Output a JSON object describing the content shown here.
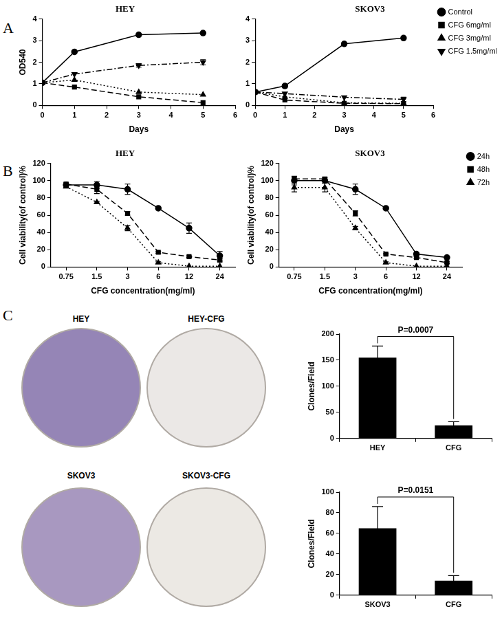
{
  "panels": [
    "A",
    "B",
    "C"
  ],
  "images": [
    {
      "label": "HEY",
      "color": "#9585b6"
    },
    {
      "label": "HEY-CFG",
      "color": "#ebe8e6"
    },
    {
      "label": "SKOV3",
      "color": "#a898c0"
    },
    {
      "label": "SKOV3-CFG",
      "color": "#ece9e4"
    }
  ],
  "chart_data": [
    {
      "type": "line",
      "title": "HEY",
      "x_label": "Days",
      "y_label": "OD540",
      "x": [
        0,
        1,
        3,
        5
      ],
      "xlim": [
        0,
        6
      ],
      "xticks": [
        0,
        1,
        2,
        3,
        4,
        5,
        6
      ],
      "ylim": [
        0,
        4
      ],
      "yticks": [
        0,
        1,
        2,
        3,
        4
      ],
      "grid": false,
      "legend": false,
      "series": [
        {
          "name": "Control",
          "color": "#000000",
          "marker": "circle",
          "line_style": "solid",
          "values": [
            1.05,
            2.48,
            3.27,
            3.35
          ],
          "errors": [
            null,
            null,
            null,
            null
          ]
        },
        {
          "name": "CFG 6mg/ml",
          "color": "#000000",
          "marker": "square",
          "line_style": "dashed",
          "values": [
            1.05,
            0.85,
            0.4,
            0.13
          ],
          "errors": [
            null,
            null,
            null,
            null
          ]
        },
        {
          "name": "CFG 3mg/ml",
          "color": "#000000",
          "marker": "triangle",
          "line_style": "dotted",
          "values": [
            1.05,
            1.18,
            0.62,
            0.5
          ],
          "errors": [
            null,
            null,
            null,
            null
          ]
        },
        {
          "name": "CFG 1.5mg/ml",
          "color": "#000000",
          "marker": "triangle-down",
          "line_style": "dashdot",
          "values": [
            1.05,
            1.45,
            1.85,
            2.0
          ],
          "errors": [
            null,
            null,
            0.08,
            0.12
          ]
        }
      ]
    },
    {
      "type": "line",
      "title": "SKOV3",
      "x_label": "Days",
      "x": [
        0,
        1,
        3,
        5
      ],
      "xlim": [
        0,
        6
      ],
      "xticks": [
        0,
        1,
        2,
        3,
        4,
        5,
        6
      ],
      "ylim": [
        0,
        4
      ],
      "yticks": [
        0,
        1,
        2,
        3,
        4
      ],
      "grid": false,
      "legend": "right",
      "series": [
        {
          "name": "Control",
          "color": "#000000",
          "marker": "circle",
          "line_style": "solid",
          "values": [
            0.62,
            0.9,
            2.85,
            3.12
          ],
          "errors": [
            null,
            0.08,
            null,
            null
          ]
        },
        {
          "name": "CFG 6mg/ml",
          "color": "#000000",
          "marker": "square",
          "line_style": "dashed",
          "values": [
            0.62,
            0.25,
            0.1,
            0.08
          ],
          "errors": [
            null,
            null,
            null,
            null
          ]
        },
        {
          "name": "CFG 3mg/ml",
          "color": "#000000",
          "marker": "triangle",
          "line_style": "dotted",
          "values": [
            0.62,
            0.4,
            0.12,
            0.1
          ],
          "errors": [
            null,
            null,
            null,
            null
          ]
        },
        {
          "name": "CFG 1.5mg/ml",
          "color": "#000000",
          "marker": "triangle-down",
          "line_style": "dashdot",
          "values": [
            0.62,
            0.55,
            0.38,
            0.28
          ],
          "errors": [
            null,
            null,
            null,
            0.1
          ]
        }
      ]
    },
    {
      "type": "line",
      "title": "HEY",
      "x_label": "CFG concentration(mg/ml)",
      "y_label": "Cell viability(of control)%",
      "categories": [
        "0.75",
        "1.5",
        "3",
        "6",
        "12",
        "24"
      ],
      "ylim": [
        0,
        120
      ],
      "yticks": [
        0,
        20,
        40,
        60,
        80,
        100,
        120
      ],
      "grid": false,
      "legend": false,
      "series": [
        {
          "name": "24h",
          "color": "#000000",
          "marker": "circle",
          "line_style": "solid",
          "values": [
            95,
            95,
            90,
            68,
            45,
            13
          ],
          "errors": [
            1,
            4,
            6,
            1,
            6,
            5
          ]
        },
        {
          "name": "48h",
          "color": "#000000",
          "marker": "square",
          "line_style": "dashed",
          "values": [
            96,
            90,
            62,
            17,
            12,
            8
          ],
          "errors": [
            2,
            5,
            2,
            1,
            1,
            2
          ]
        },
        {
          "name": "72h",
          "color": "#000000",
          "marker": "triangle",
          "line_style": "dotted",
          "values": [
            93,
            75,
            45,
            5,
            1,
            1
          ],
          "errors": [
            1,
            1,
            3,
            1,
            null,
            null
          ]
        }
      ]
    },
    {
      "type": "line",
      "title": "SKOV3",
      "x_label": "CFG concentration(mg/ml)",
      "y_label": "Cell viability(of control)%",
      "categories": [
        "0.75",
        "1.5",
        "3",
        "6",
        "12",
        "24"
      ],
      "ylim": [
        0,
        120
      ],
      "yticks": [
        0,
        20,
        40,
        60,
        80,
        100,
        120
      ],
      "grid": false,
      "legend": "right",
      "series": [
        {
          "name": "24h",
          "color": "#000000",
          "marker": "circle",
          "line_style": "solid",
          "values": [
            100,
            100,
            90,
            68,
            15,
            11
          ],
          "errors": [
            5,
            3,
            6,
            1,
            1,
            1
          ]
        },
        {
          "name": "48h",
          "color": "#000000",
          "marker": "square",
          "line_style": "dashed",
          "values": [
            102,
            102,
            62,
            15,
            11,
            5
          ],
          "errors": [
            2,
            2,
            3,
            1,
            1,
            1
          ]
        },
        {
          "name": "72h",
          "color": "#000000",
          "marker": "triangle",
          "line_style": "dotted",
          "values": [
            92,
            92,
            45,
            5,
            1,
            1
          ],
          "errors": [
            5,
            5,
            2,
            1,
            null,
            null
          ]
        }
      ]
    },
    {
      "type": "bar",
      "y_label": "Clones/Field",
      "categories": [
        "HEY",
        "CFG"
      ],
      "values": [
        155,
        25
      ],
      "errors": [
        22,
        7
      ],
      "color": "#000000",
      "ylim": [
        0,
        200
      ],
      "yticks": [
        0,
        50,
        100,
        150,
        200
      ],
      "grid": false,
      "legend": false,
      "annotation": "P=0.0007"
    },
    {
      "type": "bar",
      "y_label": "Clones/Field",
      "categories": [
        "SKOV3",
        "CFG"
      ],
      "values": [
        65,
        14
      ],
      "errors": [
        21,
        5
      ],
      "color": "#000000",
      "ylim": [
        0,
        100
      ],
      "yticks": [
        0,
        20,
        40,
        60,
        80,
        100
      ],
      "grid": false,
      "legend": false,
      "annotation": "P=0.0151"
    }
  ]
}
